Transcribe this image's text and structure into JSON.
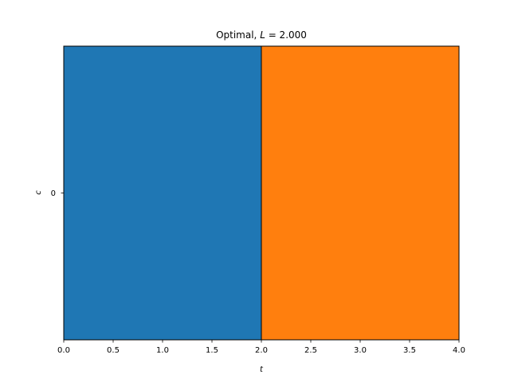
{
  "chart_data": {
    "type": "bar",
    "orientation": "horizontal",
    "stacked": true,
    "title": "Optimal, L = 2.000",
    "title_parts": {
      "prefix": "Optimal, ",
      "var": "L",
      "suffix": " = 2.000"
    },
    "xlabel": "t",
    "ylabel": "c",
    "categories": [
      "0"
    ],
    "series": [
      {
        "color": "#1f77b4",
        "start": 0.0,
        "end": 2.0
      },
      {
        "color": "#ff7f0e",
        "start": 2.0,
        "end": 4.0
      }
    ],
    "xlim": [
      0,
      4
    ],
    "ylim": [
      -0.5,
      0.5
    ],
    "xticks": [
      0.0,
      0.5,
      1.0,
      1.5,
      2.0,
      2.5,
      3.0,
      3.5,
      4.0
    ],
    "xtick_labels": [
      "0.0",
      "0.5",
      "1.0",
      "1.5",
      "2.0",
      "2.5",
      "3.0",
      "3.5",
      "4.0"
    ],
    "yticks": [
      0
    ],
    "ytick_labels": [
      "0"
    ],
    "grid": false,
    "legend": "none"
  }
}
